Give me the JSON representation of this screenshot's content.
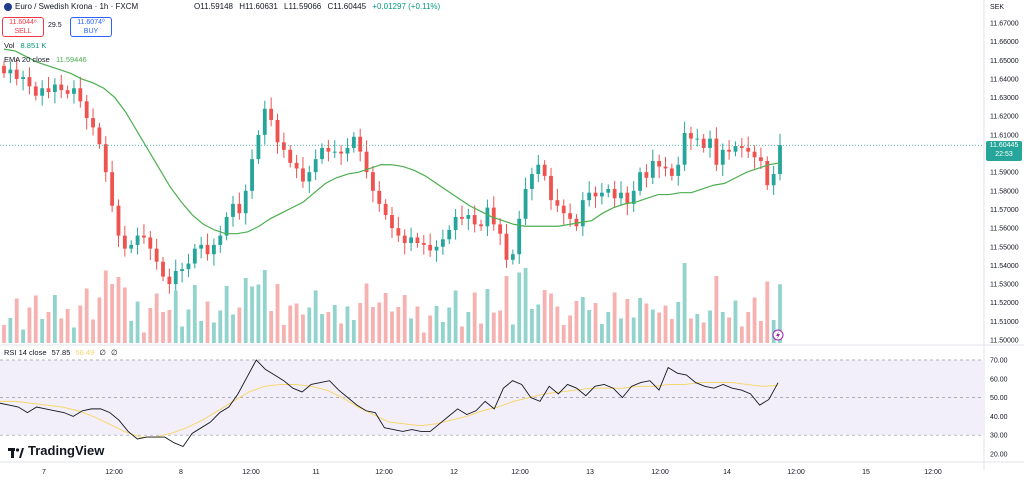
{
  "header": {
    "symbol": "Euro / Swedish Krona · 1h · FXCM",
    "open": "O11.59148",
    "high": "H11.60631",
    "low": "L11.59066",
    "close": "C11.60445",
    "change": "+0.01297 (+0.11%)"
  },
  "trade": {
    "sell_price": "11.6044⁸",
    "sell_label": "SELL",
    "spread": "29.5",
    "buy_price": "11.6074⁰",
    "buy_label": "BUY"
  },
  "indicators": {
    "vol_label": "Vol",
    "vol_value": "8.851 K",
    "ema_label": "EMA 20 close",
    "ema_value": "11.59446",
    "rsi_label": "RSI 14 close",
    "rsi_value": "57.85",
    "rsi_ma_value": "56.49",
    "rsi_extra1": "∅",
    "rsi_extra2": "∅"
  },
  "axis": {
    "currency": "SEK",
    "price_ticks": [
      "11.67000",
      "11.66000",
      "11.65000",
      "11.64000",
      "11.63000",
      "11.62000",
      "11.61000",
      "11.60000",
      "11.59000",
      "11.58000",
      "11.57000",
      "11.56000",
      "11.55000",
      "11.54000",
      "11.53000",
      "11.52000",
      "11.51000",
      "11.50000"
    ],
    "rsi_ticks": [
      "70.00",
      "60.00",
      "50.00",
      "40.00",
      "30.00",
      "20.00"
    ],
    "time_ticks": [
      "7",
      "12:00",
      "8",
      "12:00",
      "11",
      "12:00",
      "12",
      "12:00",
      "13",
      "12:00",
      "14",
      "12:00",
      "15",
      "12:00"
    ],
    "last_price": "11.60445",
    "countdown": "22:53"
  },
  "brand": {
    "name": "TradingView"
  },
  "colors": {
    "up": "#26a69a",
    "down": "#ef5350",
    "ema": "#4caf50",
    "rsi": "#131722",
    "rsi_ma": "#f5d76e",
    "vol_up": "#7fcdc4",
    "vol_down": "#f4a3a3"
  },
  "chart_data": {
    "type": "candlestick",
    "price_range": [
      11.5,
      11.67
    ],
    "rsi_range": [
      20,
      70
    ],
    "closes": [
      11.643,
      11.645,
      11.64,
      11.641,
      11.636,
      11.631,
      11.635,
      11.633,
      11.637,
      11.634,
      11.632,
      11.635,
      11.628,
      11.619,
      11.614,
      11.605,
      11.59,
      11.572,
      11.556,
      11.549,
      11.551,
      11.556,
      11.555,
      11.549,
      11.542,
      11.534,
      11.53,
      11.537,
      11.538,
      11.541,
      11.549,
      11.551,
      11.546,
      11.551,
      11.556,
      11.566,
      11.573,
      11.568,
      11.58,
      11.597,
      11.61,
      11.624,
      11.618,
      11.606,
      11.602,
      11.595,
      11.592,
      11.585,
      11.59,
      11.597,
      11.603,
      11.601,
      11.601,
      11.6,
      11.603,
      11.609,
      11.601,
      11.59,
      11.58,
      11.573,
      11.567,
      11.56,
      11.556,
      11.552,
      11.555,
      11.552,
      11.551,
      11.548,
      11.55,
      11.554,
      11.559,
      11.566,
      11.565,
      11.567,
      11.562,
      11.561,
      11.571,
      11.562,
      11.557,
      11.543,
      11.546,
      11.565,
      11.581,
      11.589,
      11.594,
      11.588,
      11.575,
      11.572,
      11.568,
      11.565,
      11.561,
      11.575,
      11.579,
      11.577,
      11.579,
      11.581,
      11.576,
      11.579,
      11.573,
      11.58,
      11.59,
      11.587,
      11.596,
      11.593,
      11.592,
      11.588,
      11.594,
      11.611,
      11.608,
      11.608,
      11.603,
      11.608,
      11.594,
      11.602,
      11.601,
      11.604,
      11.603,
      11.601,
      11.598,
      11.596,
      11.583,
      11.589,
      11.6045
    ],
    "ema": [
      11.656,
      11.655,
      11.652,
      11.649,
      11.647,
      11.645,
      11.643,
      11.64,
      11.638,
      11.635,
      11.63,
      11.622,
      11.612,
      11.602,
      11.592,
      11.582,
      11.574,
      11.567,
      11.562,
      11.559,
      11.557,
      11.557,
      11.558,
      11.561,
      11.565,
      11.568,
      11.571,
      11.574,
      11.579,
      11.584,
      11.587,
      11.589,
      11.59,
      11.592,
      11.594,
      11.594,
      11.593,
      11.591,
      11.588,
      11.584,
      11.58,
      11.576,
      11.572,
      11.569,
      11.566,
      11.564,
      11.562,
      11.561,
      11.561,
      11.561,
      11.561,
      11.562,
      11.563,
      11.564,
      11.568,
      11.571,
      11.573,
      11.574,
      11.576,
      11.578,
      11.578,
      11.579,
      11.579,
      11.581,
      11.583,
      11.584,
      11.587,
      11.59,
      11.592,
      11.594,
      11.595
    ],
    "rsi": [
      47,
      46,
      45,
      42,
      45,
      44,
      43,
      42,
      40,
      43,
      44,
      44,
      42,
      38,
      32,
      28,
      29,
      29,
      29,
      26,
      24,
      31,
      34,
      37,
      42,
      45,
      52,
      61,
      70,
      65,
      62,
      59,
      55,
      53,
      57,
      58,
      59,
      54,
      50,
      46,
      43,
      42,
      34,
      33,
      32,
      33,
      32,
      32,
      36,
      40,
      44,
      41,
      43,
      48,
      44,
      55,
      59,
      57,
      50,
      48,
      56,
      52,
      57,
      55,
      51,
      56,
      57,
      55,
      50,
      56,
      58,
      59,
      54,
      66,
      63,
      62,
      58,
      56,
      55,
      57,
      55,
      54,
      52,
      46,
      49,
      57.85
    ],
    "rsi_ma": [
      48,
      48,
      47,
      46,
      45,
      43,
      40,
      36,
      32,
      29,
      29,
      31,
      34,
      38,
      43,
      48,
      53,
      56,
      57,
      57,
      56,
      54,
      50,
      45,
      41,
      37,
      36,
      35,
      36,
      38,
      40,
      43,
      45,
      48,
      50,
      52,
      53,
      54,
      55,
      55,
      55,
      56,
      56,
      57,
      57,
      58,
      58,
      58,
      57,
      56,
      56.49
    ]
  }
}
